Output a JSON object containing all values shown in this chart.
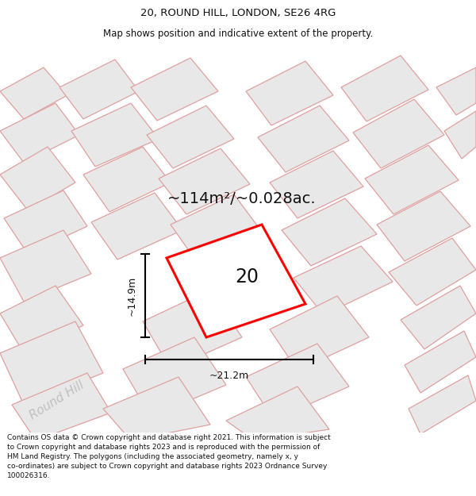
{
  "title_line1": "20, ROUND HILL, LONDON, SE26 4RG",
  "title_line2": "Map shows position and indicative extent of the property.",
  "area_text": "~114m²/~0.028ac.",
  "label_number": "20",
  "dim_width": "~21.2m",
  "dim_height": "~14.9m",
  "street_label": "Round Hill",
  "footer_text": "Contains OS data © Crown copyright and database right 2021. This information is subject to Crown copyright and database rights 2023 and is reproduced with the permission of HM Land Registry. The polygons (including the associated geometry, namely x, y co-ordinates) are subject to Crown copyright and database rights 2023 Ordnance Survey 100026316.",
  "bg_color": "#ffffff",
  "building_fill": "#e8e8e8",
  "building_edge_color": "#e0a0a0",
  "highlight_fill": "#ffffff",
  "highlight_edge": "#ff0000",
  "title_fontsize": 9.5,
  "subtitle_fontsize": 8.5,
  "footer_fontsize": 6.5
}
